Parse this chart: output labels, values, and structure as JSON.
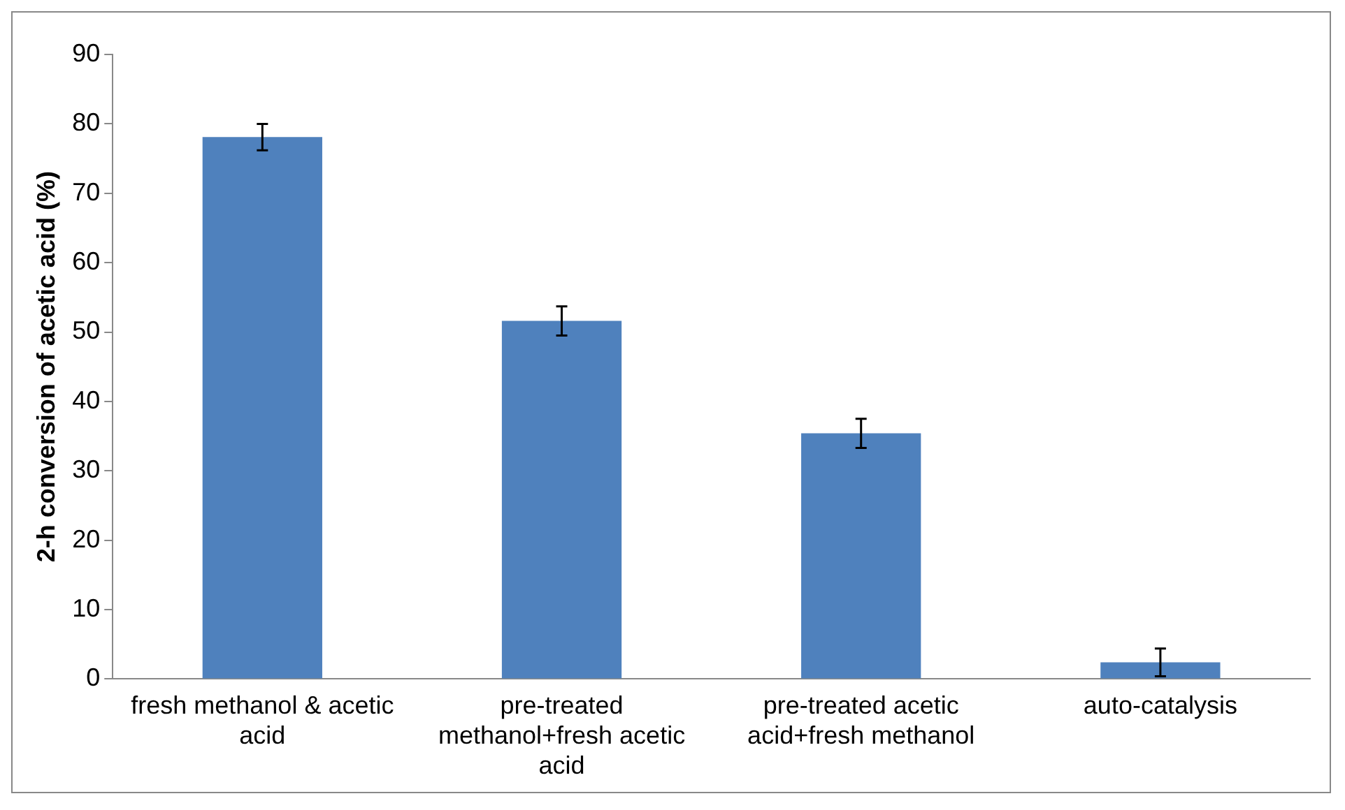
{
  "chart_data": {
    "type": "bar",
    "ylabel": "2-h conversion of acetic acid (%)",
    "categories": [
      "fresh methanol & acetic acid",
      "pre-treated methanol+fresh acetic acid",
      "pre-treated acetic acid+fresh methanol",
      "auto-catalysis"
    ],
    "values": [
      78.1,
      51.6,
      35.4,
      2.4
    ],
    "errors": [
      1.9,
      2.1,
      2.1,
      2.0
    ],
    "color": "#4f81bd",
    "ylim": [
      0,
      90
    ],
    "yticks": [
      0,
      10,
      20,
      30,
      40,
      50,
      60,
      70,
      80,
      90
    ],
    "grid": false,
    "legend": false
  }
}
